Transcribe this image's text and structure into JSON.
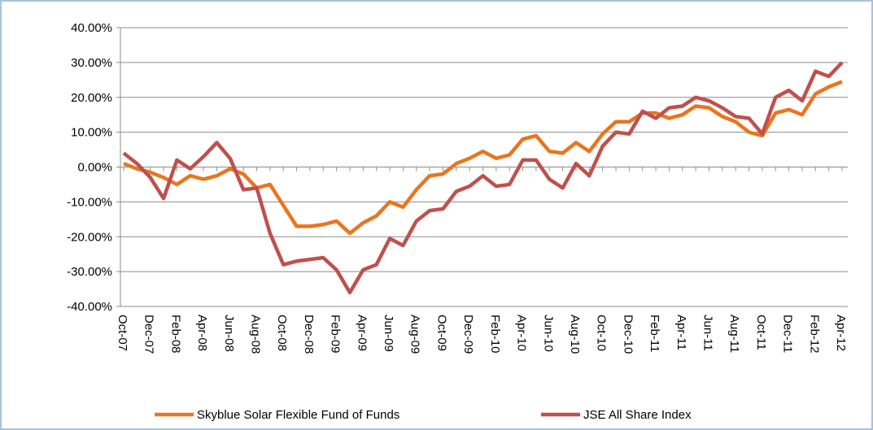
{
  "chart_data": {
    "type": "line",
    "categories": [
      "Oct-07",
      null,
      "Dec-07",
      null,
      "Feb-08",
      null,
      "Apr-08",
      null,
      "Jun-08",
      null,
      "Aug-08",
      null,
      "Oct-08",
      null,
      "Dec-08",
      null,
      "Feb-09",
      null,
      "Apr-09",
      null,
      "Jun-09",
      null,
      "Aug-09",
      null,
      "Oct-09",
      null,
      "Dec-09",
      null,
      "Feb-10",
      null,
      "Apr-10",
      null,
      "Jun-10",
      null,
      "Aug-10",
      null,
      "Oct-10",
      null,
      "Dec-10",
      null,
      "Feb-11",
      null,
      "Apr-11",
      null,
      "Jun-11",
      null,
      "Aug-11",
      null,
      "Oct-11",
      null,
      "Dec-11",
      null,
      "Feb-12",
      null,
      "Apr-12"
    ],
    "series": [
      {
        "name": "Skyblue Solar Flexible Fund of Funds",
        "color": "#e8761e",
        "values": [
          1,
          -0.5,
          -1.5,
          -3,
          -5,
          -2.5,
          -3.5,
          -2.5,
          -0.5,
          -2,
          -6,
          -5,
          -11,
          -17,
          -17,
          -16.5,
          -15.5,
          -19,
          -16,
          -14,
          -10,
          -11.5,
          -6.5,
          -2.5,
          -2,
          1,
          2.5,
          4.5,
          2.5,
          3.5,
          8,
          9,
          4.5,
          4,
          7,
          4.5,
          9.5,
          13,
          13,
          15.5,
          15.5,
          14,
          15,
          17.5,
          17,
          14.5,
          13,
          10,
          9,
          15.5,
          16.5,
          15,
          21,
          23,
          24.5
        ]
      },
      {
        "name": "JSE All Share Index",
        "color": "#c0504d",
        "values": [
          4,
          1,
          -3,
          -9,
          2,
          -0.5,
          3,
          7,
          2.5,
          -6.5,
          -6,
          -19,
          -28,
          -27,
          -26.5,
          -26,
          -29.5,
          -36,
          -29.5,
          -28,
          -20.5,
          -22.5,
          -15.5,
          -12.5,
          -12,
          -7,
          -5.5,
          -2.5,
          -5.5,
          -5,
          2,
          2,
          -3.5,
          -6,
          1,
          -2.5,
          6,
          10,
          9.5,
          16,
          14,
          17,
          17.5,
          20,
          19,
          17,
          14.5,
          14,
          9.5,
          20,
          22,
          19,
          27.5,
          26,
          30
        ]
      }
    ],
    "ylim": [
      -40,
      40
    ],
    "yticks": [
      {
        "value": -40,
        "label": "-40.00%"
      },
      {
        "value": -30,
        "label": "-30.00%"
      },
      {
        "value": -20,
        "label": "-20.00%"
      },
      {
        "value": -10,
        "label": "-10.00%"
      },
      {
        "value": 0,
        "label": "0.00%"
      },
      {
        "value": 10,
        "label": "10.00%"
      },
      {
        "value": 20,
        "label": "20.00%"
      },
      {
        "value": 30,
        "label": "30.00%"
      },
      {
        "value": 40,
        "label": "40.00%"
      }
    ],
    "grid": true,
    "legend": "bottom"
  }
}
